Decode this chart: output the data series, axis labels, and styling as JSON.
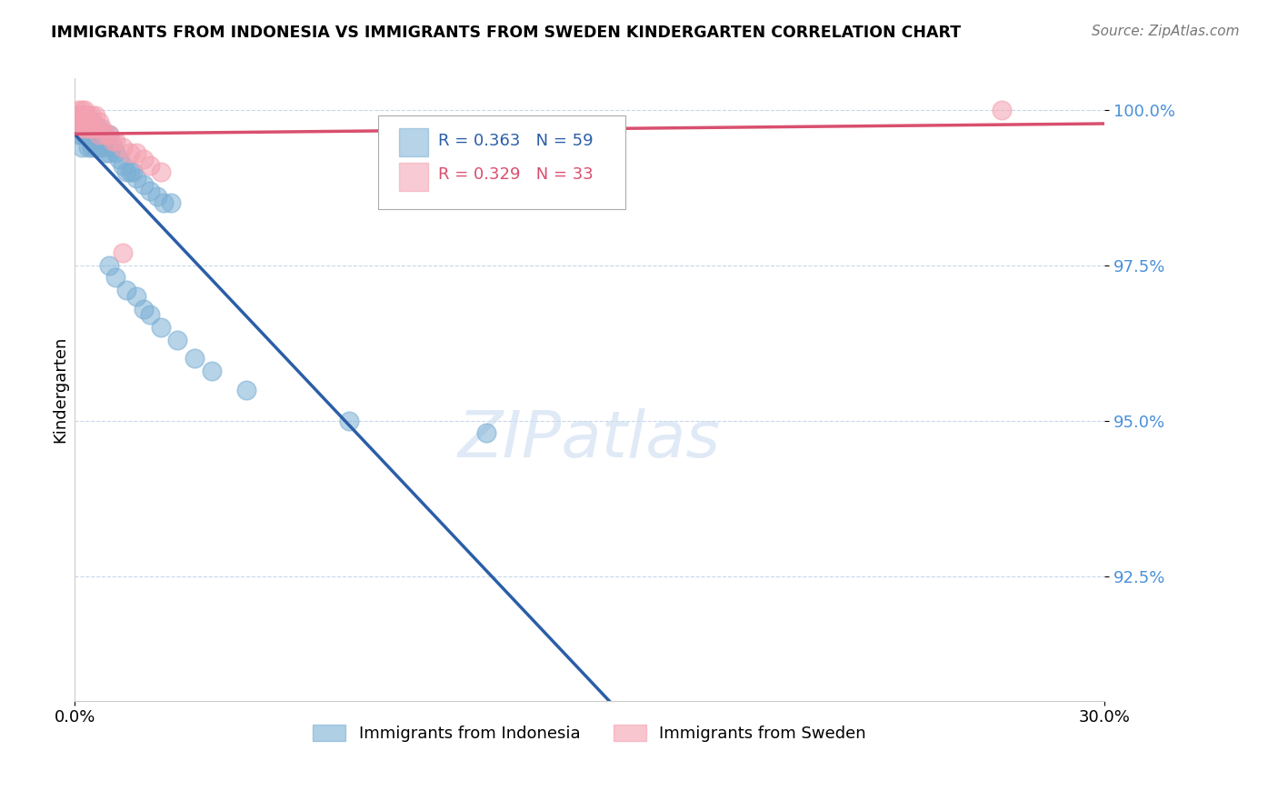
{
  "title": "IMMIGRANTS FROM INDONESIA VS IMMIGRANTS FROM SWEDEN KINDERGARTEN CORRELATION CHART",
  "source_text": "Source: ZipAtlas.com",
  "ylabel": "Kindergarten",
  "xlim": [
    0.0,
    0.3
  ],
  "ylim": [
    0.905,
    1.005
  ],
  "yticks": [
    1.0,
    0.975,
    0.95,
    0.925
  ],
  "ytick_labels": [
    "100.0%",
    "97.5%",
    "95.0%",
    "92.5%"
  ],
  "xticks": [
    0.0,
    0.3
  ],
  "xtick_labels": [
    "0.0%",
    "30.0%"
  ],
  "indonesia_color": "#7bafd4",
  "sweden_color": "#f4a0b0",
  "indonesia_line_color": "#2b5ea7",
  "sweden_line_color": "#d94f6e",
  "R_indonesia": 0.363,
  "N_indonesia": 59,
  "R_sweden": 0.329,
  "N_sweden": 33,
  "legend_label_indonesia": "Immigrants from Indonesia",
  "legend_label_sweden": "Immigrants from Sweden",
  "watermark": "ZIPatlas",
  "indo_x": [
    0.001,
    0.001,
    0.001,
    0.001,
    0.002,
    0.002,
    0.002,
    0.002,
    0.002,
    0.003,
    0.003,
    0.003,
    0.003,
    0.004,
    0.004,
    0.004,
    0.004,
    0.005,
    0.005,
    0.005,
    0.005,
    0.006,
    0.006,
    0.006,
    0.007,
    0.007,
    0.007,
    0.008,
    0.008,
    0.009,
    0.009,
    0.01,
    0.01,
    0.011,
    0.012,
    0.013,
    0.014,
    0.015,
    0.016,
    0.017,
    0.018,
    0.02,
    0.022,
    0.024,
    0.026,
    0.028,
    0.01,
    0.012,
    0.015,
    0.018,
    0.02,
    0.022,
    0.025,
    0.03,
    0.035,
    0.04,
    0.05,
    0.08,
    0.12
  ],
  "indo_y": [
    0.999,
    0.998,
    0.997,
    0.996,
    0.999,
    0.998,
    0.997,
    0.996,
    0.994,
    0.999,
    0.998,
    0.997,
    0.996,
    0.998,
    0.997,
    0.996,
    0.994,
    0.998,
    0.997,
    0.996,
    0.994,
    0.997,
    0.996,
    0.994,
    0.997,
    0.996,
    0.994,
    0.996,
    0.994,
    0.996,
    0.993,
    0.996,
    0.993,
    0.994,
    0.993,
    0.992,
    0.991,
    0.99,
    0.99,
    0.99,
    0.989,
    0.988,
    0.987,
    0.986,
    0.985,
    0.985,
    0.975,
    0.973,
    0.971,
    0.97,
    0.968,
    0.967,
    0.965,
    0.963,
    0.96,
    0.958,
    0.955,
    0.95,
    0.948
  ],
  "swe_x": [
    0.001,
    0.001,
    0.001,
    0.001,
    0.002,
    0.002,
    0.002,
    0.003,
    0.003,
    0.003,
    0.003,
    0.004,
    0.004,
    0.004,
    0.005,
    0.005,
    0.006,
    0.006,
    0.007,
    0.007,
    0.008,
    0.009,
    0.01,
    0.011,
    0.012,
    0.014,
    0.016,
    0.018,
    0.02,
    0.022,
    0.025,
    0.014,
    0.27
  ],
  "swe_y": [
    1.0,
    0.999,
    0.998,
    0.997,
    1.0,
    0.999,
    0.998,
    1.0,
    0.999,
    0.998,
    0.997,
    0.999,
    0.998,
    0.997,
    0.999,
    0.997,
    0.999,
    0.997,
    0.998,
    0.996,
    0.997,
    0.996,
    0.996,
    0.995,
    0.995,
    0.994,
    0.993,
    0.993,
    0.992,
    0.991,
    0.99,
    0.977,
    1.0
  ]
}
